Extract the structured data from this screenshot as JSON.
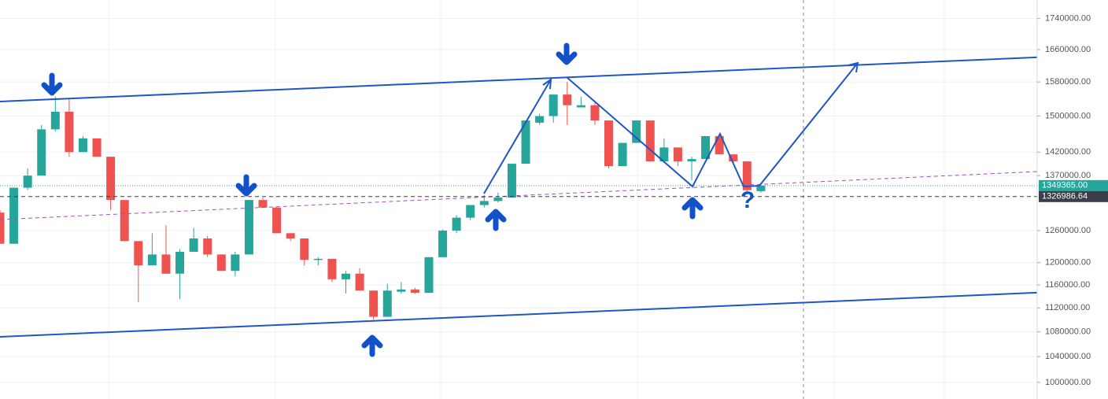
{
  "chart_data": {
    "type": "candlestick",
    "open": [
      1295000,
      1235000,
      1345000,
      1370000,
      1470000,
      1510000,
      1420000,
      1450000,
      1410000,
      1320000,
      1240000,
      1195000,
      1215000,
      1180000,
      1220000,
      1245000,
      1215000,
      1185000,
      1215000,
      1320000,
      1305000,
      1255000,
      1245000,
      1205000,
      1207000,
      1170000,
      1180000,
      1150000,
      1105000,
      1148000,
      1152000,
      1146000,
      1210000,
      1260000,
      1285000,
      1310000,
      1318000,
      1325000,
      1395000,
      1485000,
      1500000,
      1550000,
      1520000,
      1525000,
      1490000,
      1390000,
      1440000,
      1490000,
      1400000,
      1430000,
      1400000,
      1405000,
      1455000,
      1415000,
      1400000,
      1338000
    ],
    "high": [
      1300000,
      1345000,
      1385000,
      1480000,
      1545000,
      1540000,
      1455000,
      1450000,
      1410000,
      1320000,
      1240000,
      1255000,
      1270000,
      1225000,
      1265000,
      1250000,
      1215000,
      1220000,
      1320000,
      1325000,
      1305000,
      1255000,
      1245000,
      1210000,
      1207000,
      1185000,
      1190000,
      1150000,
      1162000,
      1165000,
      1155000,
      1210000,
      1262000,
      1290000,
      1310000,
      1330000,
      1335000,
      1395000,
      1490000,
      1505000,
      1550000,
      1580000,
      1545000,
      1535000,
      1490000,
      1440000,
      1490000,
      1490000,
      1450000,
      1430000,
      1410000,
      1455000,
      1460000,
      1415000,
      1400000,
      1352000
    ],
    "low": [
      1235000,
      1235000,
      1340000,
      1370000,
      1465000,
      1410000,
      1420000,
      1410000,
      1300000,
      1240000,
      1130000,
      1195000,
      1180000,
      1135000,
      1220000,
      1210000,
      1185000,
      1175000,
      1215000,
      1305000,
      1255000,
      1240000,
      1195000,
      1195000,
      1165000,
      1145000,
      1150000,
      1100000,
      1105000,
      1145000,
      1144000,
      1146000,
      1210000,
      1255000,
      1280000,
      1305000,
      1315000,
      1325000,
      1395000,
      1480000,
      1485000,
      1480000,
      1520000,
      1480000,
      1385000,
      1390000,
      1440000,
      1400000,
      1400000,
      1390000,
      1360000,
      1405000,
      1415000,
      1395000,
      1335000,
      1335000
    ],
    "close": [
      1235000,
      1345000,
      1370000,
      1470000,
      1510000,
      1420000,
      1450000,
      1410000,
      1320000,
      1240000,
      1195000,
      1215000,
      1180000,
      1220000,
      1245000,
      1215000,
      1185000,
      1215000,
      1320000,
      1305000,
      1255000,
      1245000,
      1205000,
      1207000,
      1170000,
      1180000,
      1150000,
      1105000,
      1150000,
      1152000,
      1146000,
      1210000,
      1260000,
      1285000,
      1310000,
      1318000,
      1325000,
      1395000,
      1490000,
      1500000,
      1550000,
      1525000,
      1525000,
      1490000,
      1390000,
      1440000,
      1490000,
      1400000,
      1430000,
      1400000,
      1405000,
      1455000,
      1415000,
      1400000,
      1340000,
      1349365
    ],
    "up_color": "#26a69a",
    "down_color": "#ef5350",
    "ylim": [
      975000,
      1790000
    ],
    "log_scale": true,
    "grid": true,
    "yticks": [
      {
        "value": 1740000,
        "label": "1740000.00"
      },
      {
        "value": 1660000,
        "label": "1660000.00"
      },
      {
        "value": 1580000,
        "label": "1580000.00"
      },
      {
        "value": 1500000,
        "label": "1500000.00"
      },
      {
        "value": 1420000,
        "label": "1420000.00"
      },
      {
        "value": 1370000,
        "label": "1370000.00"
      },
      {
        "value": 1260000,
        "label": "1260000.00"
      },
      {
        "value": 1200000,
        "label": "1200000.00"
      },
      {
        "value": 1160000,
        "label": "1160000.00"
      },
      {
        "value": 1120000,
        "label": "1120000.00"
      },
      {
        "value": 1080000,
        "label": "1080000.00"
      },
      {
        "value": 1040000,
        "label": "1040000.00"
      },
      {
        "value": 1000000,
        "label": "1000000.00"
      }
    ],
    "price_lines": [
      {
        "value": 1349365,
        "label": "1349365.00",
        "color": "#26a69a"
      },
      {
        "value": 1326986.64,
        "label": "1326986.64",
        "color": "#3a3e48"
      }
    ],
    "annotation": "?"
  }
}
